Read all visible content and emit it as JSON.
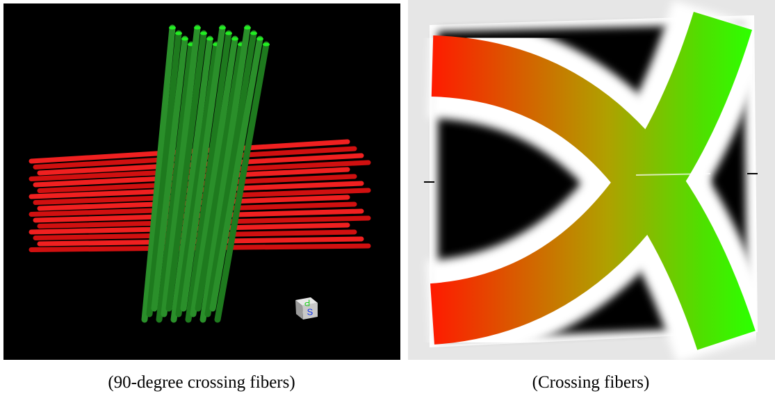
{
  "figure": {
    "panels": [
      {
        "caption": "(90-degree crossing fibers)",
        "orientation_labels": [
          "P",
          "S"
        ]
      },
      {
        "caption": "(Crossing fibers)"
      }
    ]
  }
}
